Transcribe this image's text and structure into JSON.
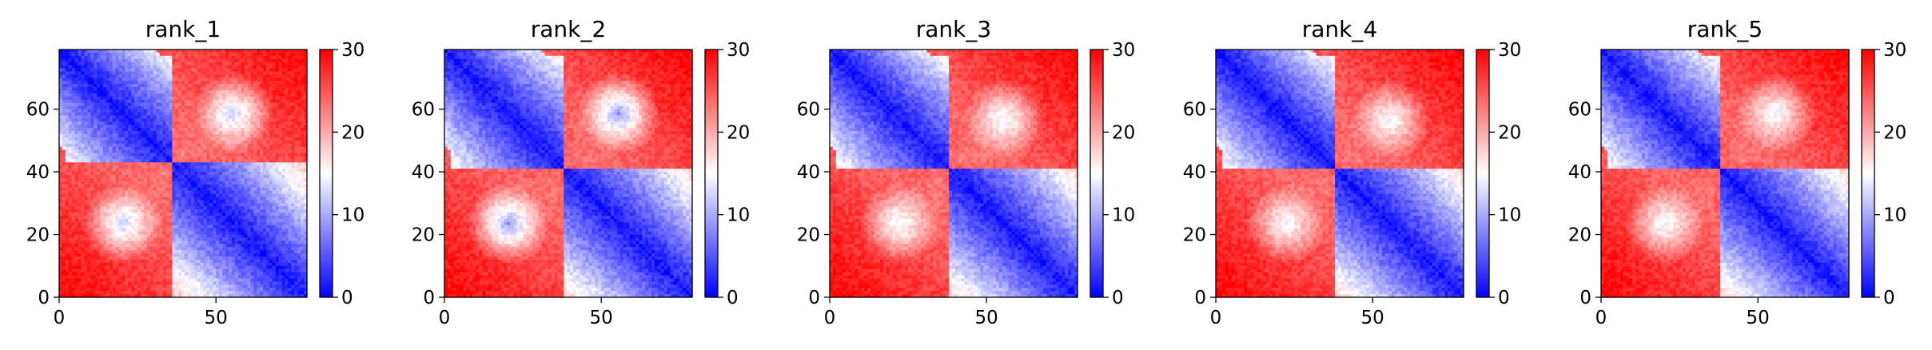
{
  "chart_data": {
    "type": "heatmap",
    "colormap": "bwr",
    "colors": {
      "low": "#0000ff",
      "mid": "#ffffff",
      "high": "#ff0000"
    },
    "grid": false,
    "matrix_size": 79,
    "xlim": [
      0,
      79
    ],
    "ylim": [
      79,
      0
    ],
    "x_ticks": [
      0,
      50
    ],
    "x_tick_labels": [
      "0",
      "50"
    ],
    "y_ticks": [
      0,
      20,
      40,
      60
    ],
    "y_tick_labels": [
      "0",
      "20",
      "40",
      "60"
    ],
    "colorbar": {
      "range": [
        0,
        30
      ],
      "ticks": [
        0,
        10,
        20,
        30
      ],
      "tick_labels": [
        "0",
        "10",
        "20",
        "30"
      ]
    },
    "panels": [
      {
        "title": "rank_1",
        "domain_break": 36,
        "blob_center": [
          55,
          20
        ],
        "blob_value": 11.5,
        "near_blob_value": 15.5
      },
      {
        "title": "rank_2",
        "domain_break": 38,
        "blob_center": [
          55,
          20
        ],
        "blob_value": 9.0,
        "near_blob_value": 12.0
      },
      {
        "title": "rank_3",
        "domain_break": 38,
        "blob_center": [
          55,
          22
        ],
        "blob_value": 13.5,
        "near_blob_value": 13.0
      },
      {
        "title": "rank_4",
        "domain_break": 38,
        "blob_center": [
          55,
          22
        ],
        "blob_value": 14.0,
        "near_blob_value": 14.0
      },
      {
        "title": "rank_5",
        "domain_break": 38,
        "blob_center": [
          55,
          20
        ],
        "blob_value": 13.5,
        "near_blob_value": 14.5
      }
    ]
  }
}
